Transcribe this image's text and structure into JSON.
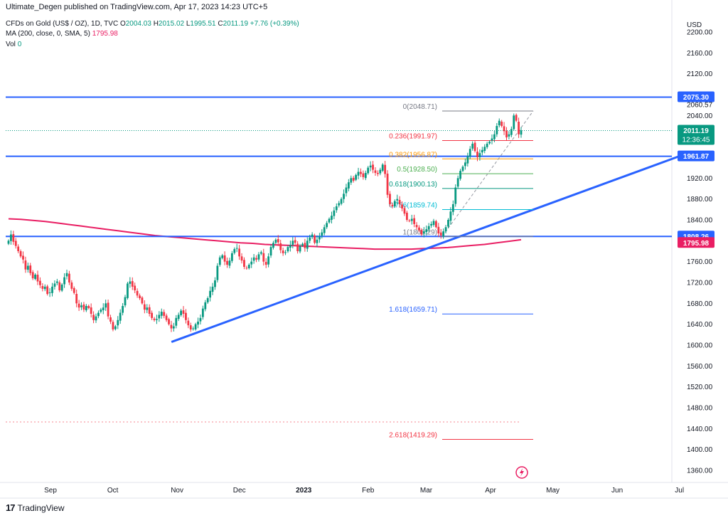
{
  "header": {
    "published": "Ultimate_Degen published on TradingView.com, Apr 17, 2023 14:23 UTC+5",
    "symbol": "CFDs on Gold (US$ / OZ), 1D, TVC",
    "o_label": "O",
    "o": "2004.03",
    "h_label": "H",
    "h": "2015.02",
    "l_label": "L",
    "l": "1995.51",
    "c_label": "C",
    "c": "2011.19",
    "change": "+7.76 (+0.39%)",
    "ma_label": "MA (200, close, 0, SMA, 5)",
    "ma_value": "1795.98",
    "vol_label": "Vol",
    "vol_value": "0"
  },
  "footer": {
    "brand": "TradingView"
  },
  "colors": {
    "up": "#089981",
    "down": "#f23645",
    "ma": "#e91e63",
    "line": "#2962ff",
    "text": "#131722"
  },
  "chart_data": {
    "type": "candlestick",
    "currency": "USD",
    "y_ticks": [
      "2200.00",
      "2160.00",
      "2120.00",
      "2080.00",
      "2040.00",
      "2000.00",
      "1960.00",
      "1920.00",
      "1880.00",
      "1840.00",
      "1800.00",
      "1760.00",
      "1720.00",
      "1680.00",
      "1640.00",
      "1600.00",
      "1560.00",
      "1520.00",
      "1480.00",
      "1440.00",
      "1400.00",
      "1360.00"
    ],
    "y_range": [
      1340,
      2205
    ],
    "x_ticks": [
      "Sep",
      "Oct",
      "Nov",
      "Dec",
      "2023",
      "Feb",
      "Mar",
      "Apr",
      "May",
      "Jun",
      "Jul"
    ],
    "horizontal_levels": [
      {
        "value": 2075.3,
        "label": "2075.30"
      },
      {
        "value": 1961.87,
        "label": "1961.87"
      },
      {
        "value": 1808.26,
        "label": "1808.26"
      }
    ],
    "price_labels": [
      {
        "value": 2060.57,
        "label": "2060.57",
        "kind": "plain"
      },
      {
        "value": 2011.19,
        "label": "2011.19",
        "sub": "12:36:45",
        "kind": "last"
      },
      {
        "value": 1795.98,
        "label": "1795.98",
        "kind": "ma"
      }
    ],
    "fibonacci": [
      {
        "ratio": "0",
        "value": 2048.71,
        "label": "0(2048.71)",
        "color": "#787b86"
      },
      {
        "ratio": "0.236",
        "value": 1991.97,
        "label": "0.236(1991.97)",
        "color": "#f23645"
      },
      {
        "ratio": "0.382",
        "value": 1956.87,
        "label": "0.382(1956.87)",
        "color": "#ff9800"
      },
      {
        "ratio": "0.5",
        "value": 1928.5,
        "label": "0.5(1928.50)",
        "color": "#4caf50"
      },
      {
        "ratio": "0.618",
        "value": 1900.13,
        "label": "0.618(1900.13)",
        "color": "#089981"
      },
      {
        "ratio": "0.786",
        "value": 1859.74,
        "label": "0.786(1859.74)",
        "color": "#00bcd4"
      },
      {
        "ratio": "1",
        "value": 1808.29,
        "label": "1(1808.29)",
        "color": "#787b86"
      },
      {
        "ratio": "1.618",
        "value": 1659.71,
        "label": "1.618(1659.71)",
        "color": "#2962ff"
      },
      {
        "ratio": "2.618",
        "value": 1419.29,
        "label": "2.618(1419.29)",
        "color": "#f23645"
      }
    ],
    "trendline": {
      "from": {
        "date": "2022-10-31",
        "price": 1617
      },
      "to": {
        "date": "2023-06-30",
        "price": 1960
      }
    },
    "closes": [
      1800,
      1812,
      1798,
      1790,
      1780,
      1770,
      1764,
      1745,
      1752,
      1738,
      1728,
      1735,
      1722,
      1715,
      1708,
      1712,
      1698,
      1701,
      1712,
      1718,
      1722,
      1705,
      1716,
      1730,
      1738,
      1720,
      1708,
      1700,
      1680,
      1672,
      1676,
      1668,
      1675,
      1671,
      1660,
      1648,
      1655,
      1662,
      1668,
      1672,
      1680,
      1655,
      1645,
      1630,
      1636,
      1648,
      1662,
      1675,
      1692,
      1718,
      1722,
      1712,
      1705,
      1695,
      1690,
      1680,
      1668,
      1672,
      1660,
      1652,
      1648,
      1650,
      1658,
      1664,
      1656,
      1648,
      1640,
      1632,
      1636,
      1652,
      1658,
      1666,
      1660,
      1648,
      1638,
      1630,
      1632,
      1640,
      1645,
      1652,
      1670,
      1682,
      1690,
      1704,
      1712,
      1724,
      1752,
      1768,
      1772,
      1760,
      1754,
      1762,
      1776,
      1784,
      1786,
      1770,
      1762,
      1750,
      1748,
      1754,
      1760,
      1768,
      1764,
      1774,
      1778,
      1760,
      1754,
      1770,
      1788,
      1796,
      1802,
      1797,
      1782,
      1776,
      1778,
      1788,
      1792,
      1800,
      1796,
      1780,
      1790,
      1794,
      1786,
      1800,
      1806,
      1812,
      1796,
      1802,
      1808,
      1816,
      1826,
      1834,
      1842,
      1848,
      1858,
      1866,
      1872,
      1880,
      1890,
      1902,
      1912,
      1920,
      1915,
      1926,
      1932,
      1928,
      1922,
      1930,
      1940,
      1944,
      1936,
      1930,
      1928,
      1936,
      1946,
      1928,
      1888,
      1870,
      1866,
      1876,
      1880,
      1870,
      1862,
      1852,
      1840,
      1838,
      1842,
      1832,
      1826,
      1820,
      1812,
      1818,
      1822,
      1828,
      1832,
      1838,
      1826,
      1814,
      1810,
      1818,
      1826,
      1840,
      1856,
      1870,
      1902,
      1920,
      1934,
      1942,
      1950,
      1962,
      1976,
      1986,
      1972,
      1960,
      1968,
      1974,
      1980,
      1986,
      1990,
      1996,
      2004,
      2020,
      2030,
      2020,
      2010,
      1998,
      2004,
      2014,
      2040,
      2030,
      2004,
      2011.19
    ],
    "ma200": [
      1842,
      1841,
      1839,
      1837,
      1834,
      1831,
      1828,
      1825,
      1822,
      1819,
      1816,
      1813,
      1810,
      1808,
      1806,
      1804,
      1802,
      1800,
      1798,
      1796,
      1795,
      1793,
      1792,
      1791,
      1790,
      1789,
      1788,
      1787,
      1786,
      1785,
      1784,
      1784,
      1784,
      1784,
      1785,
      1786,
      1787,
      1789,
      1791,
      1793,
      1796,
      1799,
      1802
    ]
  }
}
